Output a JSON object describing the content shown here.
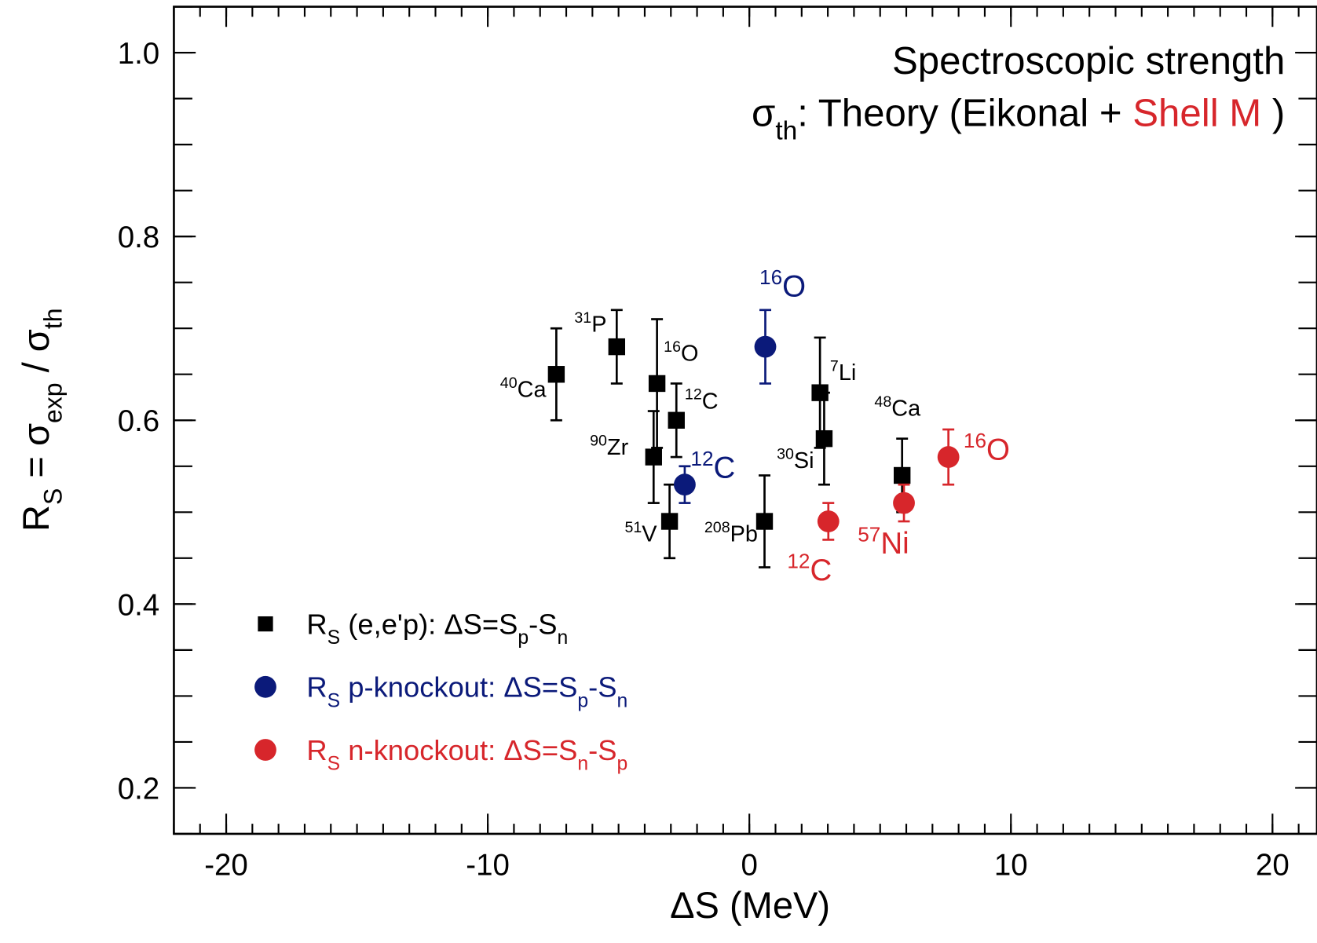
{
  "chart_data": {
    "type": "scatter",
    "title": "Spectroscopic strength",
    "subtitle_parts": [
      {
        "text": "σ"
      },
      {
        "sub": "th"
      },
      {
        "text": ": Theory (Eikonal + "
      },
      {
        "text": "Shell M",
        "color": "#d7262b"
      },
      {
        "text": " )"
      }
    ],
    "xlabel": "ΔS (MeV)",
    "ylabel_parts": [
      {
        "text": "R"
      },
      {
        "sub": "S"
      },
      {
        "text": " = σ"
      },
      {
        "sub": "exp"
      },
      {
        "text": " / σ"
      },
      {
        "sub": "th"
      }
    ],
    "xlim": [
      -22,
      21.7
    ],
    "ylim": [
      0.15,
      1.05
    ],
    "xticks": [
      -20,
      -10,
      0,
      10,
      20
    ],
    "yticks": [
      0.2,
      0.4,
      0.6,
      0.8,
      {
        "value": 1.0,
        "label": "1.0"
      }
    ],
    "xminor_step": 1,
    "yminor_step": 0.05,
    "legend": "lower left",
    "series": [
      {
        "name_parts": [
          {
            "text": "R"
          },
          {
            "sub": "S"
          },
          {
            "text": " (e,e'p): ΔS=S"
          },
          {
            "sub": "p"
          },
          {
            "text": "-S"
          },
          {
            "sub": "n"
          }
        ],
        "color": "#000000",
        "marker": "square",
        "x": [
          -7.38,
          -5.07,
          -3.53,
          -2.79,
          -3.66,
          -3.05,
          0.58,
          2.7,
          2.86,
          5.84
        ],
        "y": [
          0.65,
          0.68,
          0.64,
          0.6,
          0.56,
          0.49,
          0.49,
          0.63,
          0.58,
          0.54
        ],
        "yerr": [
          0.05,
          0.04,
          0.07,
          0.04,
          0.05,
          0.04,
          0.05,
          0.06,
          0.05,
          0.04
        ],
        "labels": [
          {
            "sup": "40",
            "text": "Ca"
          },
          {
            "sup": "31",
            "text": "P"
          },
          {
            "sup": "16",
            "text": "O"
          },
          {
            "sup": "12",
            "text": "C"
          },
          {
            "sup": "90",
            "text": "Zr"
          },
          {
            "sup": "51",
            "text": "V"
          },
          {
            "sup": "208",
            "text": "Pb"
          },
          {
            "sup": "7",
            "text": "Li"
          },
          {
            "sup": "30",
            "text": "Si"
          },
          {
            "sup": "48",
            "text": "Ca"
          }
        ]
      },
      {
        "name_parts": [
          {
            "text": "R"
          },
          {
            "sub": "S"
          },
          {
            "text": " p-knockout: ΔS=S"
          },
          {
            "sub": "p"
          },
          {
            "text": "-S"
          },
          {
            "sub": "n"
          }
        ],
        "color": "#0b1a7a",
        "marker": "circle",
        "x": [
          0.61,
          -2.47
        ],
        "y": [
          0.68,
          0.53
        ],
        "yerr": [
          0.04,
          0.02
        ],
        "labels": [
          {
            "sup": "16",
            "text": "O"
          },
          {
            "sup": "12",
            "text": "C"
          }
        ]
      },
      {
        "name_parts": [
          {
            "text": "R"
          },
          {
            "sub": "S"
          },
          {
            "text": " n-knockout: ΔS=S"
          },
          {
            "sub": "n"
          },
          {
            "text": "-S"
          },
          {
            "sub": "p"
          }
        ],
        "color": "#d7262b",
        "marker": "circle",
        "x": [
          3.02,
          5.91,
          7.61
        ],
        "y": [
          0.49,
          0.51,
          0.56
        ],
        "yerr": [
          0.02,
          0.02,
          0.03
        ],
        "labels": [
          {
            "sup": "12",
            "text": "C"
          },
          {
            "sup": "57",
            "text": "Ni"
          },
          {
            "sup": "16",
            "text": "O"
          }
        ]
      }
    ]
  }
}
